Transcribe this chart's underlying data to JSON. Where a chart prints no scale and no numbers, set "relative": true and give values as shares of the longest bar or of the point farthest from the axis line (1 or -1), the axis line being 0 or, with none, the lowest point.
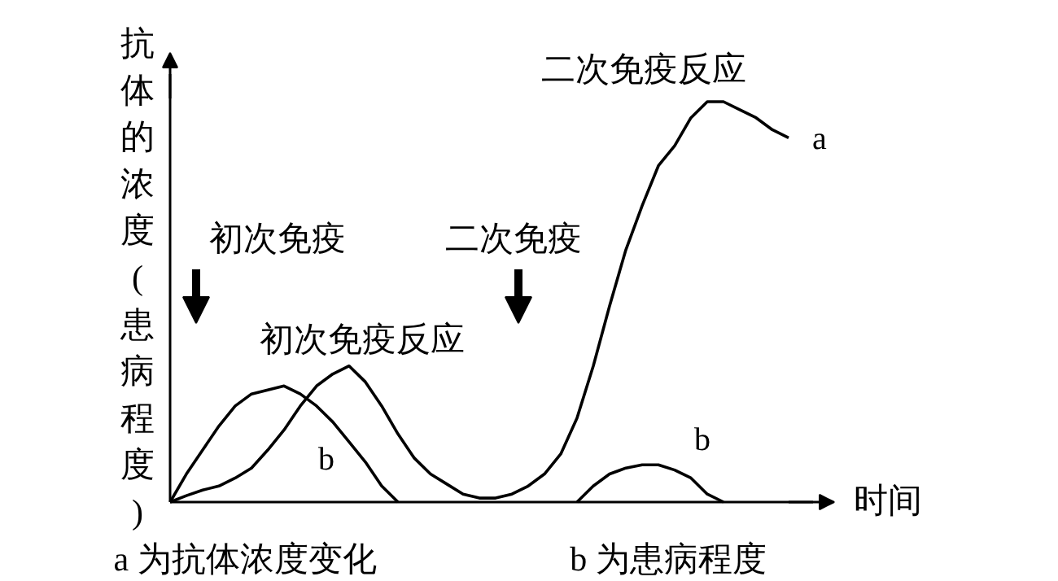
{
  "chart_data": {
    "type": "line",
    "relative": true,
    "ylabel": "抗体的浓度(患病程度)",
    "xlabel": "时间",
    "categories": [
      null,
      null,
      null,
      null,
      null,
      null,
      null,
      null,
      null,
      null,
      null,
      null,
      null,
      null,
      null,
      null,
      null,
      null,
      null,
      null,
      null,
      null,
      null,
      null,
      null,
      null,
      null,
      null,
      null,
      null,
      null,
      null,
      null,
      null,
      null,
      null,
      null,
      null,
      null
    ],
    "series": [
      {
        "name": "a",
        "color": "#000000",
        "values": [
          0,
          0.016,
          0.03,
          0.04,
          0.06,
          0.085,
          0.13,
          0.18,
          0.24,
          0.29,
          0.32,
          0.34,
          0.3,
          0.24,
          0.17,
          0.11,
          0.07,
          0.045,
          0.02,
          0.01,
          0.01,
          0.02,
          0.04,
          0.07,
          0.12,
          0.21,
          0.34,
          0.49,
          0.63,
          0.74,
          0.84,
          0.89,
          0.96,
          1.0,
          1.0,
          0.98,
          0.96,
          0.93,
          0.91
        ]
      },
      {
        "name": "b",
        "color": "#000000",
        "values": [
          0,
          0.07,
          0.13,
          0.19,
          0.24,
          0.27,
          0.28,
          0.29,
          0.27,
          0.24,
          0.2,
          0.15,
          0.1,
          0.04,
          0,
          null,
          null,
          null,
          null,
          null,
          null,
          null,
          null,
          null,
          null,
          0,
          0.04,
          0.07,
          0.085,
          0.093,
          0.093,
          0.08,
          0.06,
          0.02,
          0,
          null,
          null,
          null,
          null
        ]
      }
    ],
    "annotations": [
      "初次免疫",
      "二次免疫",
      "初次免疫反应",
      "二次免疫反应",
      "b",
      "a 为抗体浓度变化",
      "b 为患病程度"
    ],
    "grid": false,
    "legend": false,
    "marker": "none",
    "line_style": "solid"
  }
}
